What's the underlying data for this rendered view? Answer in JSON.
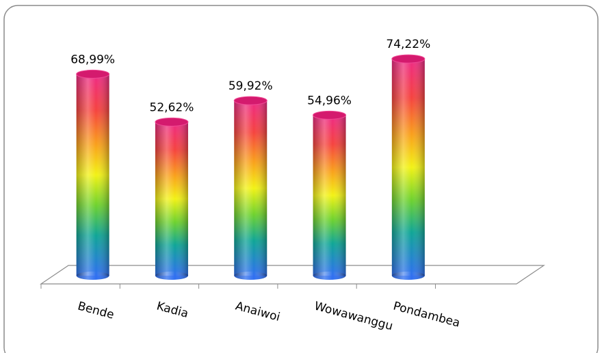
{
  "chart_data": {
    "type": "bar",
    "categories": [
      "Bende",
      "Kadia",
      "Anaiwoi",
      "Wowawanggu",
      "Pondambea"
    ],
    "values": [
      68.99,
      52.62,
      59.92,
      54.96,
      74.22
    ],
    "value_labels": [
      "68,99%",
      "52,62%",
      "59,92%",
      "54,96%",
      "74,22%"
    ]
  }
}
